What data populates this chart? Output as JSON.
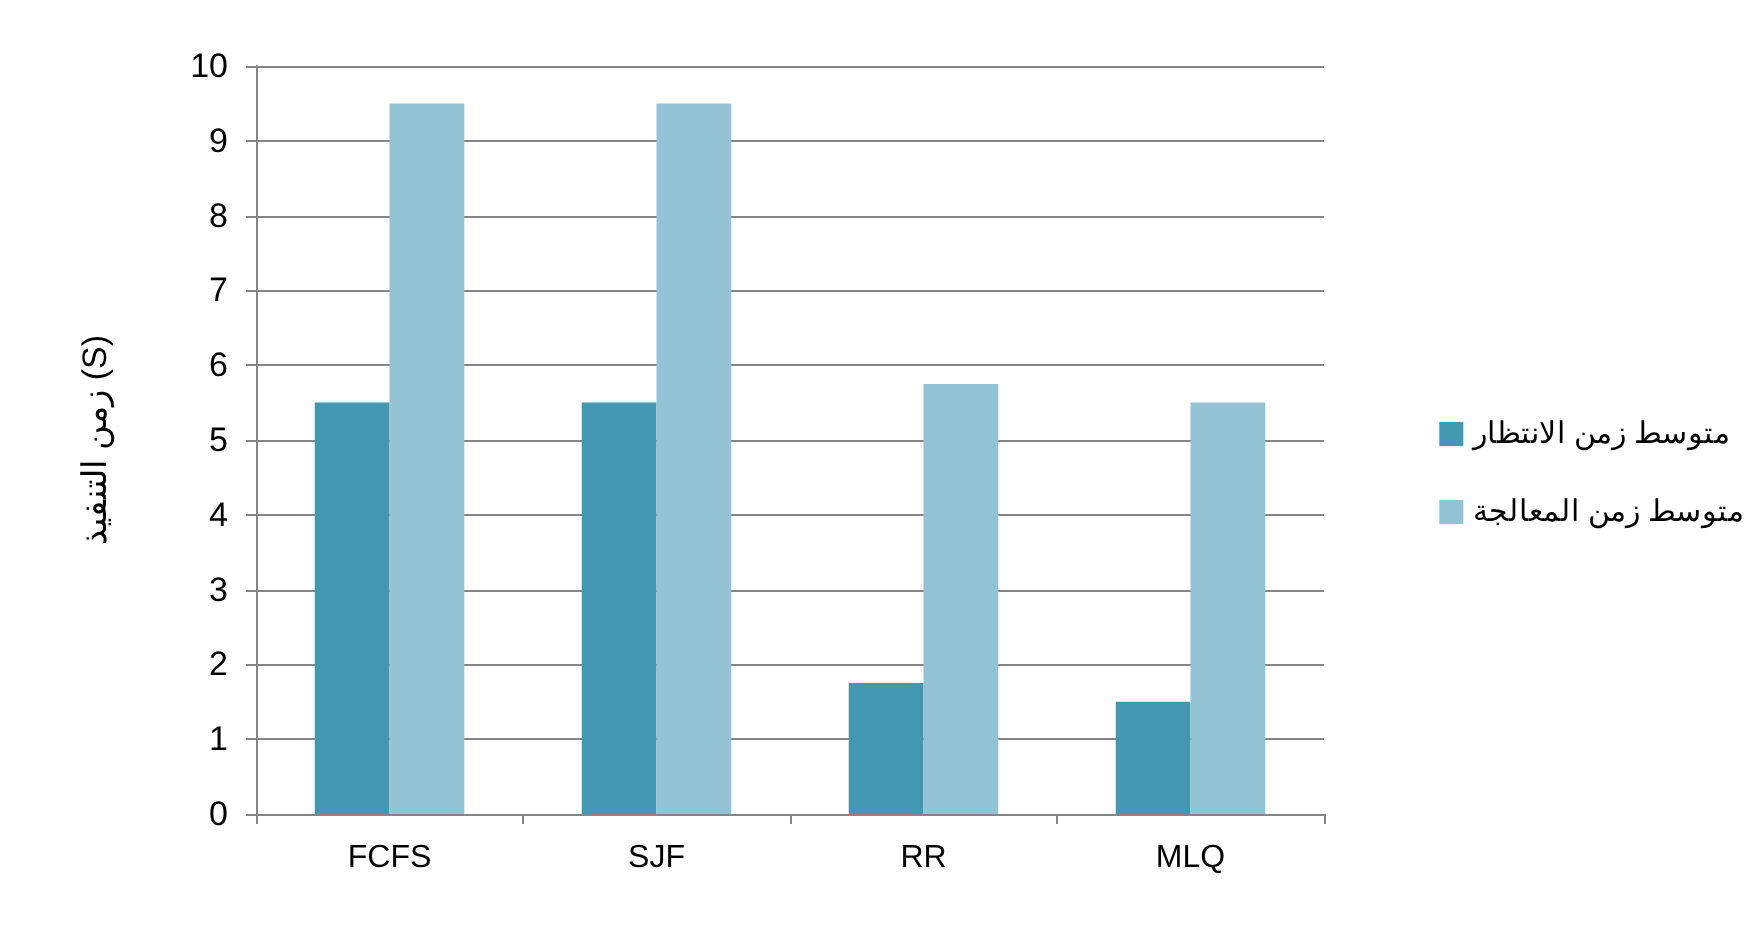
{
  "chart_data": {
    "type": "bar",
    "ylabel": "زمن التنفيذ (S)",
    "categories": [
      "FCFS",
      "SJF",
      "RR",
      "MLQ"
    ],
    "series": [
      {
        "name": "متوسط زمن الانتظار",
        "color": "#4397b0",
        "values": [
          5.5,
          5.5,
          1.75,
          1.5
        ]
      },
      {
        "name": "متوسط زمن المعالجة",
        "color": "#94c3d5",
        "values": [
          9.5,
          9.5,
          5.75,
          5.5
        ]
      }
    ],
    "ylim": [
      0,
      10
    ],
    "yticks": [
      0,
      1,
      2,
      3,
      4,
      5,
      6,
      7,
      8,
      9,
      10
    ],
    "grid": "y",
    "legend": "right"
  }
}
